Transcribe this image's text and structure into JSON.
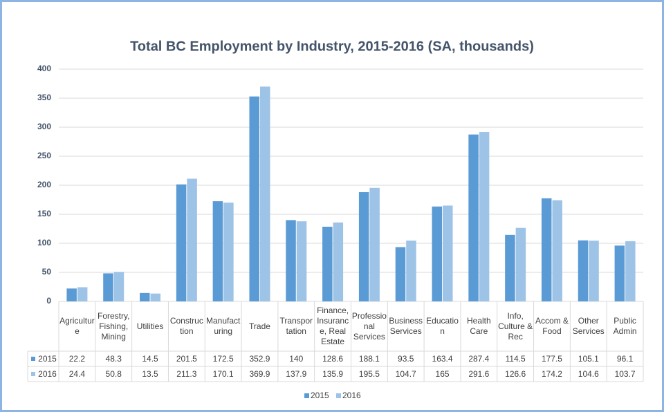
{
  "chart_data": {
    "type": "bar",
    "title": "Total BC Employment by Industry, 2015-2016 (SA, thousands)",
    "categories": [
      "Agriculture",
      "Forestry, Fishing, Mining",
      "Utilities",
      "Construction",
      "Manufacturing",
      "Trade",
      "Transportation",
      "Finance, Insurance, Real Estate",
      "Professional Services",
      "Business Services",
      "Education",
      "Health Care",
      "Info, Culture & Rec",
      "Accom & Food",
      "Other Services",
      "Public Admin"
    ],
    "series": [
      {
        "name": "2015",
        "color": "#5b9bd5",
        "values": [
          22.2,
          48.3,
          14.5,
          201.5,
          172.5,
          352.9,
          140,
          128.6,
          188.1,
          93.5,
          163.4,
          287.4,
          114.5,
          177.5,
          105.1,
          96.1
        ]
      },
      {
        "name": "2016",
        "color": "#9dc3e6",
        "values": [
          24.4,
          50.8,
          13.5,
          211.3,
          170.1,
          369.9,
          137.9,
          135.9,
          195.5,
          104.7,
          165,
          291.6,
          126.6,
          174.2,
          104.6,
          103.7
        ]
      }
    ],
    "ylim": [
      0,
      400
    ],
    "yticks": [
      0,
      50,
      100,
      150,
      200,
      250,
      300,
      350,
      400
    ],
    "grid": true,
    "legend": "bottom"
  }
}
